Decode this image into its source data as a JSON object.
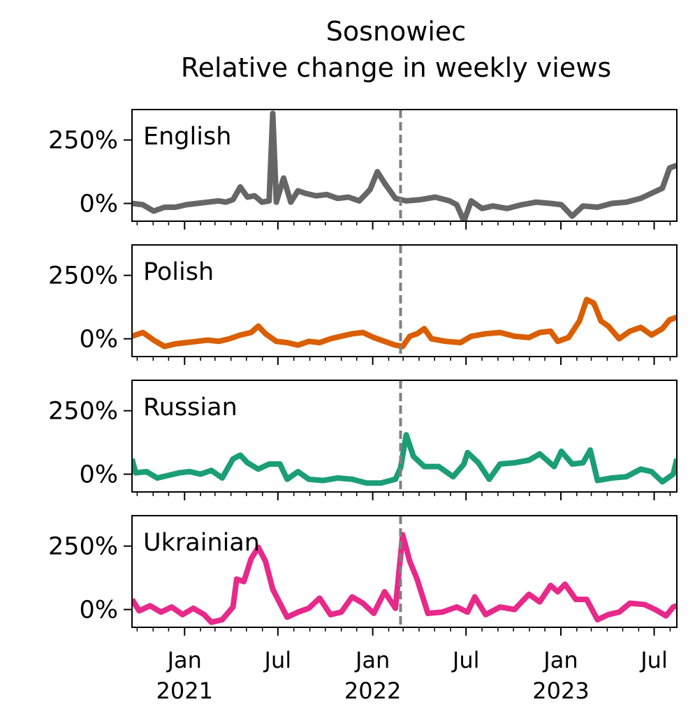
{
  "chart_data": {
    "type": "line",
    "title": "Sosnowiec",
    "subtitle": "Relative change in weekly views",
    "xlabel": "",
    "ylabel": "",
    "x_range": [
      "2020-09-21",
      "2023-08-14"
    ],
    "ylim": [
      -70,
      370
    ],
    "y_ticks": [
      {
        "value": 0,
        "label": "0%"
      },
      {
        "value": 250,
        "label": "250%"
      }
    ],
    "x_ticks": [
      {
        "date": "2021-01-01",
        "label": "Jan",
        "year": "2021"
      },
      {
        "date": "2021-07-01",
        "label": "Jul",
        "year": ""
      },
      {
        "date": "2022-01-01",
        "label": "Jan",
        "year": "2022"
      },
      {
        "date": "2022-07-01",
        "label": "Jul",
        "year": ""
      },
      {
        "date": "2023-01-01",
        "label": "Jan",
        "year": "2023"
      },
      {
        "date": "2023-07-01",
        "label": "Jul",
        "year": ""
      }
    ],
    "reference_line": {
      "date": "2022-02-24",
      "style": "dashed",
      "color": "#808080"
    },
    "grid": false,
    "legend": "none",
    "series": [
      {
        "name": "English",
        "color": "#666666",
        "points": [
          [
            "2020-09-21",
            0
          ],
          [
            "2020-10-12",
            -5
          ],
          [
            "2020-11-02",
            -30
          ],
          [
            "2020-11-23",
            -15
          ],
          [
            "2020-12-14",
            -15
          ],
          [
            "2021-01-04",
            -5
          ],
          [
            "2021-01-25",
            0
          ],
          [
            "2021-02-15",
            5
          ],
          [
            "2021-03-08",
            10
          ],
          [
            "2021-03-22",
            5
          ],
          [
            "2021-04-05",
            15
          ],
          [
            "2021-04-19",
            65
          ],
          [
            "2021-05-03",
            25
          ],
          [
            "2021-05-17",
            30
          ],
          [
            "2021-05-31",
            5
          ],
          [
            "2021-06-14",
            10
          ],
          [
            "2021-06-21",
            355
          ],
          [
            "2021-06-28",
            5
          ],
          [
            "2021-07-12",
            100
          ],
          [
            "2021-07-26",
            5
          ],
          [
            "2021-08-09",
            50
          ],
          [
            "2021-08-23",
            40
          ],
          [
            "2021-09-13",
            30
          ],
          [
            "2021-10-04",
            35
          ],
          [
            "2021-10-25",
            20
          ],
          [
            "2021-11-15",
            25
          ],
          [
            "2021-12-06",
            10
          ],
          [
            "2021-12-27",
            55
          ],
          [
            "2022-01-10",
            125
          ],
          [
            "2022-01-24",
            80
          ],
          [
            "2022-02-14",
            20
          ],
          [
            "2022-03-07",
            10
          ],
          [
            "2022-04-04",
            15
          ],
          [
            "2022-05-02",
            25
          ],
          [
            "2022-05-30",
            10
          ],
          [
            "2022-06-13",
            -5
          ],
          [
            "2022-06-27",
            -70
          ],
          [
            "2022-07-11",
            10
          ],
          [
            "2022-08-01",
            -20
          ],
          [
            "2022-08-22",
            -10
          ],
          [
            "2022-09-19",
            -20
          ],
          [
            "2022-10-17",
            -5
          ],
          [
            "2022-11-14",
            5
          ],
          [
            "2022-12-12",
            0
          ],
          [
            "2023-01-02",
            -5
          ],
          [
            "2023-01-23",
            -50
          ],
          [
            "2023-02-13",
            -10
          ],
          [
            "2023-03-13",
            -15
          ],
          [
            "2023-04-10",
            0
          ],
          [
            "2023-05-08",
            5
          ],
          [
            "2023-06-05",
            20
          ],
          [
            "2023-06-26",
            40
          ],
          [
            "2023-07-17",
            60
          ],
          [
            "2023-07-31",
            140
          ],
          [
            "2023-08-14",
            150
          ]
        ]
      },
      {
        "name": "Polish",
        "color": "#d95f02",
        "points": [
          [
            "2020-09-21",
            10
          ],
          [
            "2020-10-12",
            25
          ],
          [
            "2020-11-02",
            -5
          ],
          [
            "2020-11-23",
            -30
          ],
          [
            "2020-12-14",
            -20
          ],
          [
            "2021-01-04",
            -15
          ],
          [
            "2021-01-25",
            -10
          ],
          [
            "2021-02-15",
            -5
          ],
          [
            "2021-03-08",
            -10
          ],
          [
            "2021-03-29",
            0
          ],
          [
            "2021-04-19",
            15
          ],
          [
            "2021-05-10",
            25
          ],
          [
            "2021-05-24",
            50
          ],
          [
            "2021-06-07",
            20
          ],
          [
            "2021-06-28",
            -10
          ],
          [
            "2021-07-19",
            -15
          ],
          [
            "2021-08-09",
            -25
          ],
          [
            "2021-08-30",
            -10
          ],
          [
            "2021-09-20",
            -15
          ],
          [
            "2021-10-11",
            0
          ],
          [
            "2021-11-01",
            10
          ],
          [
            "2021-11-22",
            20
          ],
          [
            "2021-12-13",
            25
          ],
          [
            "2022-01-03",
            5
          ],
          [
            "2022-01-24",
            -10
          ],
          [
            "2022-02-14",
            -25
          ],
          [
            "2022-02-28",
            -30
          ],
          [
            "2022-03-14",
            10
          ],
          [
            "2022-03-28",
            20
          ],
          [
            "2022-04-11",
            40
          ],
          [
            "2022-04-25",
            0
          ],
          [
            "2022-05-23",
            -10
          ],
          [
            "2022-06-20",
            -15
          ],
          [
            "2022-07-11",
            10
          ],
          [
            "2022-08-08",
            20
          ],
          [
            "2022-09-05",
            25
          ],
          [
            "2022-10-03",
            10
          ],
          [
            "2022-10-31",
            5
          ],
          [
            "2022-11-21",
            25
          ],
          [
            "2022-12-12",
            30
          ],
          [
            "2022-12-26",
            -10
          ],
          [
            "2023-01-16",
            5
          ],
          [
            "2023-02-06",
            70
          ],
          [
            "2023-02-20",
            155
          ],
          [
            "2023-03-06",
            140
          ],
          [
            "2023-03-20",
            70
          ],
          [
            "2023-04-03",
            50
          ],
          [
            "2023-04-24",
            0
          ],
          [
            "2023-05-15",
            30
          ],
          [
            "2023-06-05",
            45
          ],
          [
            "2023-06-26",
            15
          ],
          [
            "2023-07-17",
            40
          ],
          [
            "2023-07-31",
            75
          ],
          [
            "2023-08-14",
            85
          ]
        ]
      },
      {
        "name": "Russian",
        "color": "#1b9e77",
        "points": [
          [
            "2020-09-21",
            60
          ],
          [
            "2020-09-28",
            5
          ],
          [
            "2020-10-19",
            10
          ],
          [
            "2020-11-09",
            -15
          ],
          [
            "2020-11-30",
            -5
          ],
          [
            "2020-12-21",
            5
          ],
          [
            "2021-01-11",
            10
          ],
          [
            "2021-02-01",
            0
          ],
          [
            "2021-02-22",
            15
          ],
          [
            "2021-03-15",
            -15
          ],
          [
            "2021-04-05",
            60
          ],
          [
            "2021-04-19",
            75
          ],
          [
            "2021-05-03",
            45
          ],
          [
            "2021-05-24",
            20
          ],
          [
            "2021-06-14",
            40
          ],
          [
            "2021-07-05",
            40
          ],
          [
            "2021-07-19",
            -20
          ],
          [
            "2021-08-09",
            10
          ],
          [
            "2021-08-30",
            -20
          ],
          [
            "2021-09-27",
            -25
          ],
          [
            "2021-10-25",
            -15
          ],
          [
            "2021-11-22",
            -20
          ],
          [
            "2021-12-20",
            -35
          ],
          [
            "2022-01-17",
            -35
          ],
          [
            "2022-02-14",
            -20
          ],
          [
            "2022-02-24",
            25
          ],
          [
            "2022-03-07",
            155
          ],
          [
            "2022-03-21",
            70
          ],
          [
            "2022-04-11",
            30
          ],
          [
            "2022-05-09",
            30
          ],
          [
            "2022-06-06",
            -10
          ],
          [
            "2022-06-27",
            40
          ],
          [
            "2022-07-04",
            85
          ],
          [
            "2022-07-25",
            45
          ],
          [
            "2022-08-15",
            -20
          ],
          [
            "2022-09-05",
            40
          ],
          [
            "2022-10-03",
            45
          ],
          [
            "2022-10-31",
            55
          ],
          [
            "2022-11-21",
            80
          ],
          [
            "2022-12-19",
            30
          ],
          [
            "2023-01-02",
            90
          ],
          [
            "2023-01-23",
            40
          ],
          [
            "2023-02-13",
            45
          ],
          [
            "2023-02-27",
            95
          ],
          [
            "2023-03-13",
            -25
          ],
          [
            "2023-04-10",
            -15
          ],
          [
            "2023-05-08",
            -10
          ],
          [
            "2023-06-05",
            20
          ],
          [
            "2023-06-26",
            10
          ],
          [
            "2023-07-17",
            -30
          ],
          [
            "2023-08-07",
            0
          ],
          [
            "2023-08-14",
            60
          ]
        ]
      },
      {
        "name": "Ukrainian",
        "color": "#e7298a",
        "points": [
          [
            "2020-09-21",
            40
          ],
          [
            "2020-10-05",
            -5
          ],
          [
            "2020-10-26",
            15
          ],
          [
            "2020-11-16",
            -10
          ],
          [
            "2020-12-07",
            10
          ],
          [
            "2020-12-28",
            -20
          ],
          [
            "2021-01-18",
            5
          ],
          [
            "2021-02-08",
            -20
          ],
          [
            "2021-02-22",
            -50
          ],
          [
            "2021-03-15",
            -40
          ],
          [
            "2021-04-05",
            10
          ],
          [
            "2021-04-12",
            120
          ],
          [
            "2021-04-26",
            110
          ],
          [
            "2021-05-10",
            200
          ],
          [
            "2021-05-24",
            245
          ],
          [
            "2021-06-07",
            190
          ],
          [
            "2021-06-21",
            80
          ],
          [
            "2021-07-05",
            25
          ],
          [
            "2021-07-19",
            -30
          ],
          [
            "2021-08-09",
            -10
          ],
          [
            "2021-08-30",
            5
          ],
          [
            "2021-09-20",
            45
          ],
          [
            "2021-10-11",
            -20
          ],
          [
            "2021-11-01",
            -10
          ],
          [
            "2021-11-22",
            50
          ],
          [
            "2021-12-13",
            25
          ],
          [
            "2022-01-03",
            -15
          ],
          [
            "2022-01-24",
            70
          ],
          [
            "2022-02-14",
            5
          ],
          [
            "2022-02-28",
            295
          ],
          [
            "2022-03-14",
            190
          ],
          [
            "2022-03-28",
            120
          ],
          [
            "2022-04-18",
            -15
          ],
          [
            "2022-05-16",
            -10
          ],
          [
            "2022-06-13",
            10
          ],
          [
            "2022-07-04",
            -10
          ],
          [
            "2022-07-18",
            50
          ],
          [
            "2022-08-08",
            -20
          ],
          [
            "2022-09-05",
            10
          ],
          [
            "2022-10-03",
            0
          ],
          [
            "2022-10-31",
            60
          ],
          [
            "2022-11-21",
            30
          ],
          [
            "2022-12-12",
            95
          ],
          [
            "2022-12-26",
            70
          ],
          [
            "2023-01-09",
            100
          ],
          [
            "2023-01-30",
            40
          ],
          [
            "2023-02-20",
            40
          ],
          [
            "2023-03-13",
            -40
          ],
          [
            "2023-04-03",
            -20
          ],
          [
            "2023-04-24",
            -10
          ],
          [
            "2023-05-15",
            25
          ],
          [
            "2023-06-12",
            20
          ],
          [
            "2023-07-03",
            0
          ],
          [
            "2023-07-24",
            -25
          ],
          [
            "2023-08-07",
            10
          ],
          [
            "2023-08-14",
            15
          ]
        ]
      }
    ]
  }
}
